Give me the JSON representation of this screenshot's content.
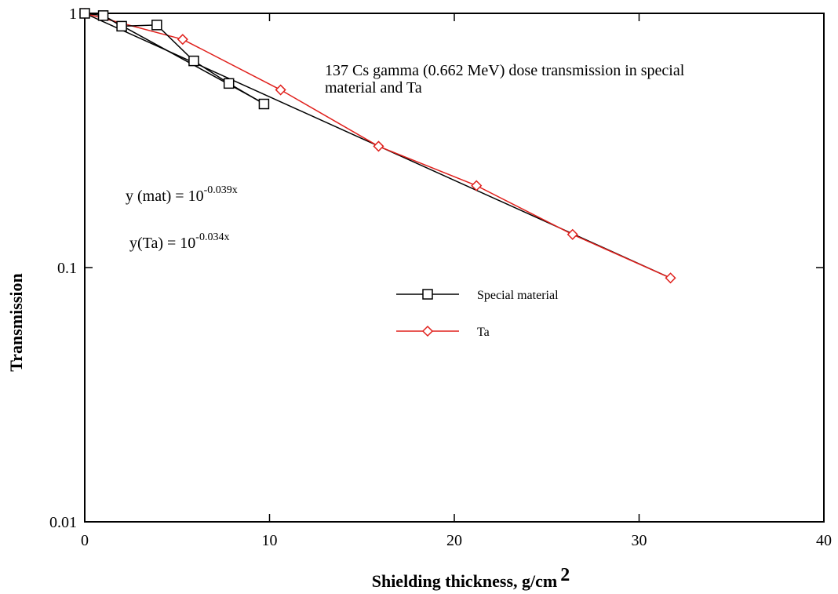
{
  "chart_data": {
    "type": "line",
    "x_label": {
      "text": "Shielding thickness,  g/cm",
      "sup": "2"
    },
    "y_label": "Transmission",
    "log_y": true,
    "xlim": [
      0,
      40
    ],
    "xticks": [
      0,
      10,
      20,
      30,
      40
    ],
    "ylim": [
      0.01,
      1
    ],
    "yticks": [
      0.01,
      0.1,
      1
    ],
    "annotations": [
      {
        "lines": [
          "137 Cs gamma (0.662 MeV) dose transmission in special",
          "material and Ta"
        ]
      },
      {
        "text": "y (mat) = 10",
        "sup": "-0.039x"
      },
      {
        "text": "y(Ta) = 10",
        "sup": "-0.034x"
      }
    ],
    "series": [
      {
        "name": "Special material",
        "color": "#000000",
        "marker": "square",
        "x": [
          0,
          1,
          2,
          3.9,
          5.9,
          7.8,
          9.7
        ],
        "values": [
          1,
          0.98,
          0.89,
          0.9,
          0.65,
          0.53,
          0.44
        ]
      },
      {
        "name": "Ta",
        "color": "#e0201c",
        "marker": "diamond",
        "x": [
          0,
          5.3,
          10.6,
          15.9,
          21.2,
          26.4,
          31.7
        ],
        "values": [
          1,
          0.79,
          0.5,
          0.3,
          0.21,
          0.135,
          0.091
        ]
      }
    ],
    "fit_lines": [
      {
        "color": "#000000",
        "x": [
          1,
          9.5
        ],
        "values": [
          0.98,
          0.45
        ]
      },
      {
        "color": "#000000",
        "x": [
          0,
          31.7
        ],
        "values": [
          1,
          0.091
        ]
      }
    ]
  }
}
